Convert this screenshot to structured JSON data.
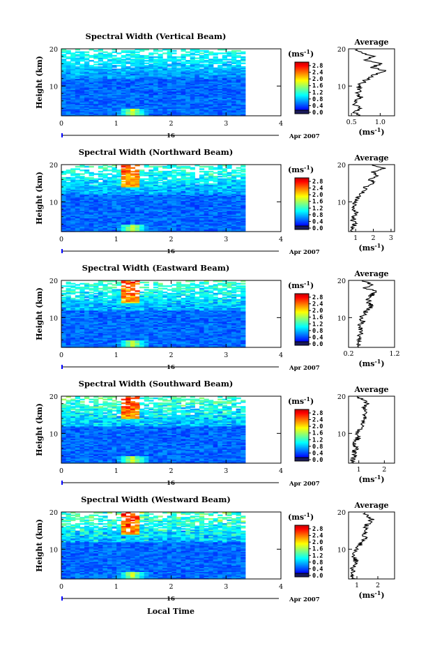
{
  "figure": {
    "x_axis_label": "Local Time",
    "height_label": "Height (km)",
    "average_title": "Average",
    "unit_label": "(ms",
    "unit_exp": "-1",
    "unit_close": ")",
    "date_day": "16",
    "date_month_year": "Apr 2007",
    "colorbar_ticks": [
      "2.8",
      "2.4",
      "2.0",
      "1.6",
      "1.2",
      "0.8",
      "0.4",
      "0.0"
    ],
    "colormap": [
      "#00008f",
      "#0000ff",
      "#0040ff",
      "#0080ff",
      "#00c0ff",
      "#00ffff",
      "#40ffbf",
      "#80ff80",
      "#c0ff40",
      "#ffff00",
      "#ffc000",
      "#ff8000",
      "#ff4000",
      "#ff0000",
      "#c00000"
    ]
  },
  "chart_data": [
    {
      "type": "heatmap",
      "title": "Spectral Width (Vertical Beam)",
      "xlabel": "",
      "ylabel": "Height (km)",
      "xlim": [
        0,
        4
      ],
      "ylim": [
        2,
        20
      ],
      "x_ticks": [
        "0",
        "1",
        "2",
        "3",
        "4"
      ],
      "y_ticks": [
        "10",
        "20"
      ],
      "data_end_hour": 3.35,
      "colorbar_range": [
        0.0,
        2.8
      ],
      "profile": {
        "title": "Average",
        "xlabel": "(ms-1)",
        "xlim": [
          0.45,
          1.25
        ],
        "x_ticks": [
          "0.5",
          "1.0"
        ],
        "heights": [
          2,
          3,
          4,
          5,
          6,
          7,
          8,
          9,
          10,
          11,
          12,
          13,
          14,
          15,
          16,
          17,
          18,
          19,
          20
        ],
        "values": [
          0.62,
          0.55,
          0.68,
          0.52,
          0.58,
          0.66,
          0.6,
          0.64,
          0.62,
          0.7,
          0.78,
          0.9,
          1.12,
          0.85,
          1.0,
          0.7,
          0.9,
          0.68,
          0.55
        ]
      }
    },
    {
      "type": "heatmap",
      "title": "Spectral Width (Northward Beam)",
      "xlabel": "",
      "ylabel": "Height (km)",
      "xlim": [
        0,
        4
      ],
      "ylim": [
        2,
        20
      ],
      "x_ticks": [
        "0",
        "1",
        "2",
        "3",
        "4"
      ],
      "y_ticks": [
        "10",
        "20"
      ],
      "data_end_hour": 3.35,
      "colorbar_range": [
        0.0,
        2.8
      ],
      "profile": {
        "title": "Average",
        "xlabel": "(ms-1)",
        "xlim": [
          0.6,
          3.2
        ],
        "x_ticks": [
          "1",
          "2",
          "3"
        ],
        "heights": [
          2,
          3,
          4,
          5,
          6,
          7,
          8,
          9,
          10,
          11,
          12,
          13,
          14,
          15,
          16,
          17,
          18,
          19,
          20
        ],
        "values": [
          0.9,
          0.8,
          1.0,
          0.85,
          0.9,
          1.0,
          0.95,
          0.9,
          1.0,
          1.1,
          1.3,
          1.5,
          1.6,
          2.1,
          1.8,
          2.3,
          1.9,
          2.6,
          1.7
        ]
      }
    },
    {
      "type": "heatmap",
      "title": "Spectral Width (Eastward Beam)",
      "xlabel": "",
      "ylabel": "Height (km)",
      "xlim": [
        0,
        4
      ],
      "ylim": [
        2,
        20
      ],
      "x_ticks": [
        "0",
        "1",
        "2",
        "3",
        "4"
      ],
      "y_ticks": [
        "10",
        "20"
      ],
      "data_end_hour": 3.35,
      "colorbar_range": [
        0.0,
        2.8
      ],
      "profile": {
        "title": "Average",
        "xlabel": "",
        "xlim": [
          0.2,
          1.2
        ],
        "x_ticks": [
          "0.2",
          "1.2"
        ],
        "heights": [
          2,
          3,
          4,
          5,
          6,
          7,
          8,
          9,
          10,
          11,
          12,
          13,
          14,
          15,
          16,
          17,
          18,
          19,
          20
        ],
        "values": [
          0.42,
          0.4,
          0.45,
          0.4,
          0.48,
          0.44,
          0.46,
          0.5,
          0.45,
          0.55,
          0.6,
          0.7,
          0.65,
          0.62,
          0.7,
          0.8,
          0.55,
          0.7,
          0.5
        ]
      }
    },
    {
      "type": "heatmap",
      "title": "Spectral Width (Southward Beam)",
      "xlabel": "",
      "ylabel": "Height (km)",
      "xlim": [
        0,
        4
      ],
      "ylim": [
        2,
        20
      ],
      "x_ticks": [
        "0",
        "1",
        "2",
        "3",
        "4"
      ],
      "y_ticks": [
        "10",
        "20"
      ],
      "data_end_hour": 3.35,
      "colorbar_range": [
        0.0,
        2.8
      ],
      "profile": {
        "title": "Average",
        "xlabel": "(ms-1)",
        "xlim": [
          0.6,
          2.4
        ],
        "x_ticks": [
          "1",
          "2"
        ],
        "heights": [
          2,
          3,
          4,
          5,
          6,
          7,
          8,
          9,
          10,
          11,
          12,
          13,
          14,
          15,
          16,
          17,
          18,
          19,
          20
        ],
        "values": [
          0.8,
          0.75,
          0.85,
          0.8,
          0.9,
          0.85,
          0.9,
          1.0,
          0.95,
          1.05,
          1.2,
          1.1,
          1.25,
          1.15,
          1.3,
          1.2,
          1.4,
          1.1,
          1.0
        ]
      }
    },
    {
      "type": "heatmap",
      "title": "Spectral Width (Westward Beam)",
      "xlabel": "Local Time",
      "ylabel": "Height (km)",
      "xlim": [
        0,
        4
      ],
      "ylim": [
        2,
        20
      ],
      "x_ticks": [
        "0",
        "1",
        "2",
        "3",
        "4"
      ],
      "y_ticks": [
        "10",
        "20"
      ],
      "data_end_hour": 3.35,
      "colorbar_range": [
        0.0,
        2.8
      ],
      "profile": {
        "title": "Average",
        "xlabel": "",
        "xlim": [
          0.6,
          2.8
        ],
        "x_ticks": [
          "1",
          "2"
        ],
        "heights": [
          2,
          3,
          4,
          5,
          6,
          7,
          8,
          9,
          10,
          11,
          12,
          13,
          14,
          15,
          16,
          17,
          18,
          19,
          20
        ],
        "values": [
          0.9,
          0.8,
          0.85,
          0.8,
          0.9,
          0.95,
          0.85,
          0.9,
          1.0,
          1.1,
          1.3,
          1.4,
          1.3,
          1.5,
          1.4,
          1.6,
          1.7,
          1.5,
          1.2
        ]
      }
    }
  ]
}
